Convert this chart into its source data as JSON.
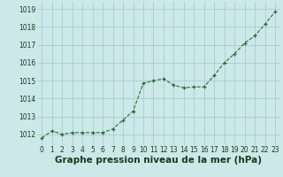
{
  "x": [
    0,
    1,
    2,
    3,
    4,
    5,
    6,
    7,
    8,
    9,
    10,
    11,
    12,
    13,
    14,
    15,
    16,
    17,
    18,
    19,
    20,
    21,
    22,
    23
  ],
  "y": [
    1011.8,
    1012.2,
    1012.0,
    1012.1,
    1012.1,
    1012.1,
    1012.1,
    1012.3,
    1012.8,
    1013.3,
    1014.85,
    1015.0,
    1015.1,
    1014.75,
    1014.6,
    1014.65,
    1014.65,
    1015.3,
    1016.0,
    1016.5,
    1017.1,
    1017.5,
    1018.15,
    1018.85
  ],
  "line_color": "#2d6a2d",
  "marker_color": "#2d6a2d",
  "bg_color": "#cce8e8",
  "grid_color": "#99cccc",
  "xlabel": "Graphe pression niveau de la mer (hPa)",
  "xlabel_color": "#1a3a1a",
  "ylabel_ticks": [
    1012,
    1013,
    1014,
    1015,
    1016,
    1017,
    1018,
    1019
  ],
  "ylim": [
    1011.4,
    1019.4
  ],
  "xlim": [
    -0.5,
    23.5
  ],
  "xtick_labels": [
    "0",
    "1",
    "2",
    "3",
    "4",
    "5",
    "6",
    "7",
    "8",
    "9",
    "10",
    "11",
    "12",
    "13",
    "14",
    "15",
    "16",
    "17",
    "18",
    "19",
    "20",
    "21",
    "22",
    "23"
  ],
  "tick_fontsize": 5.5,
  "xlabel_fontsize": 7.5
}
